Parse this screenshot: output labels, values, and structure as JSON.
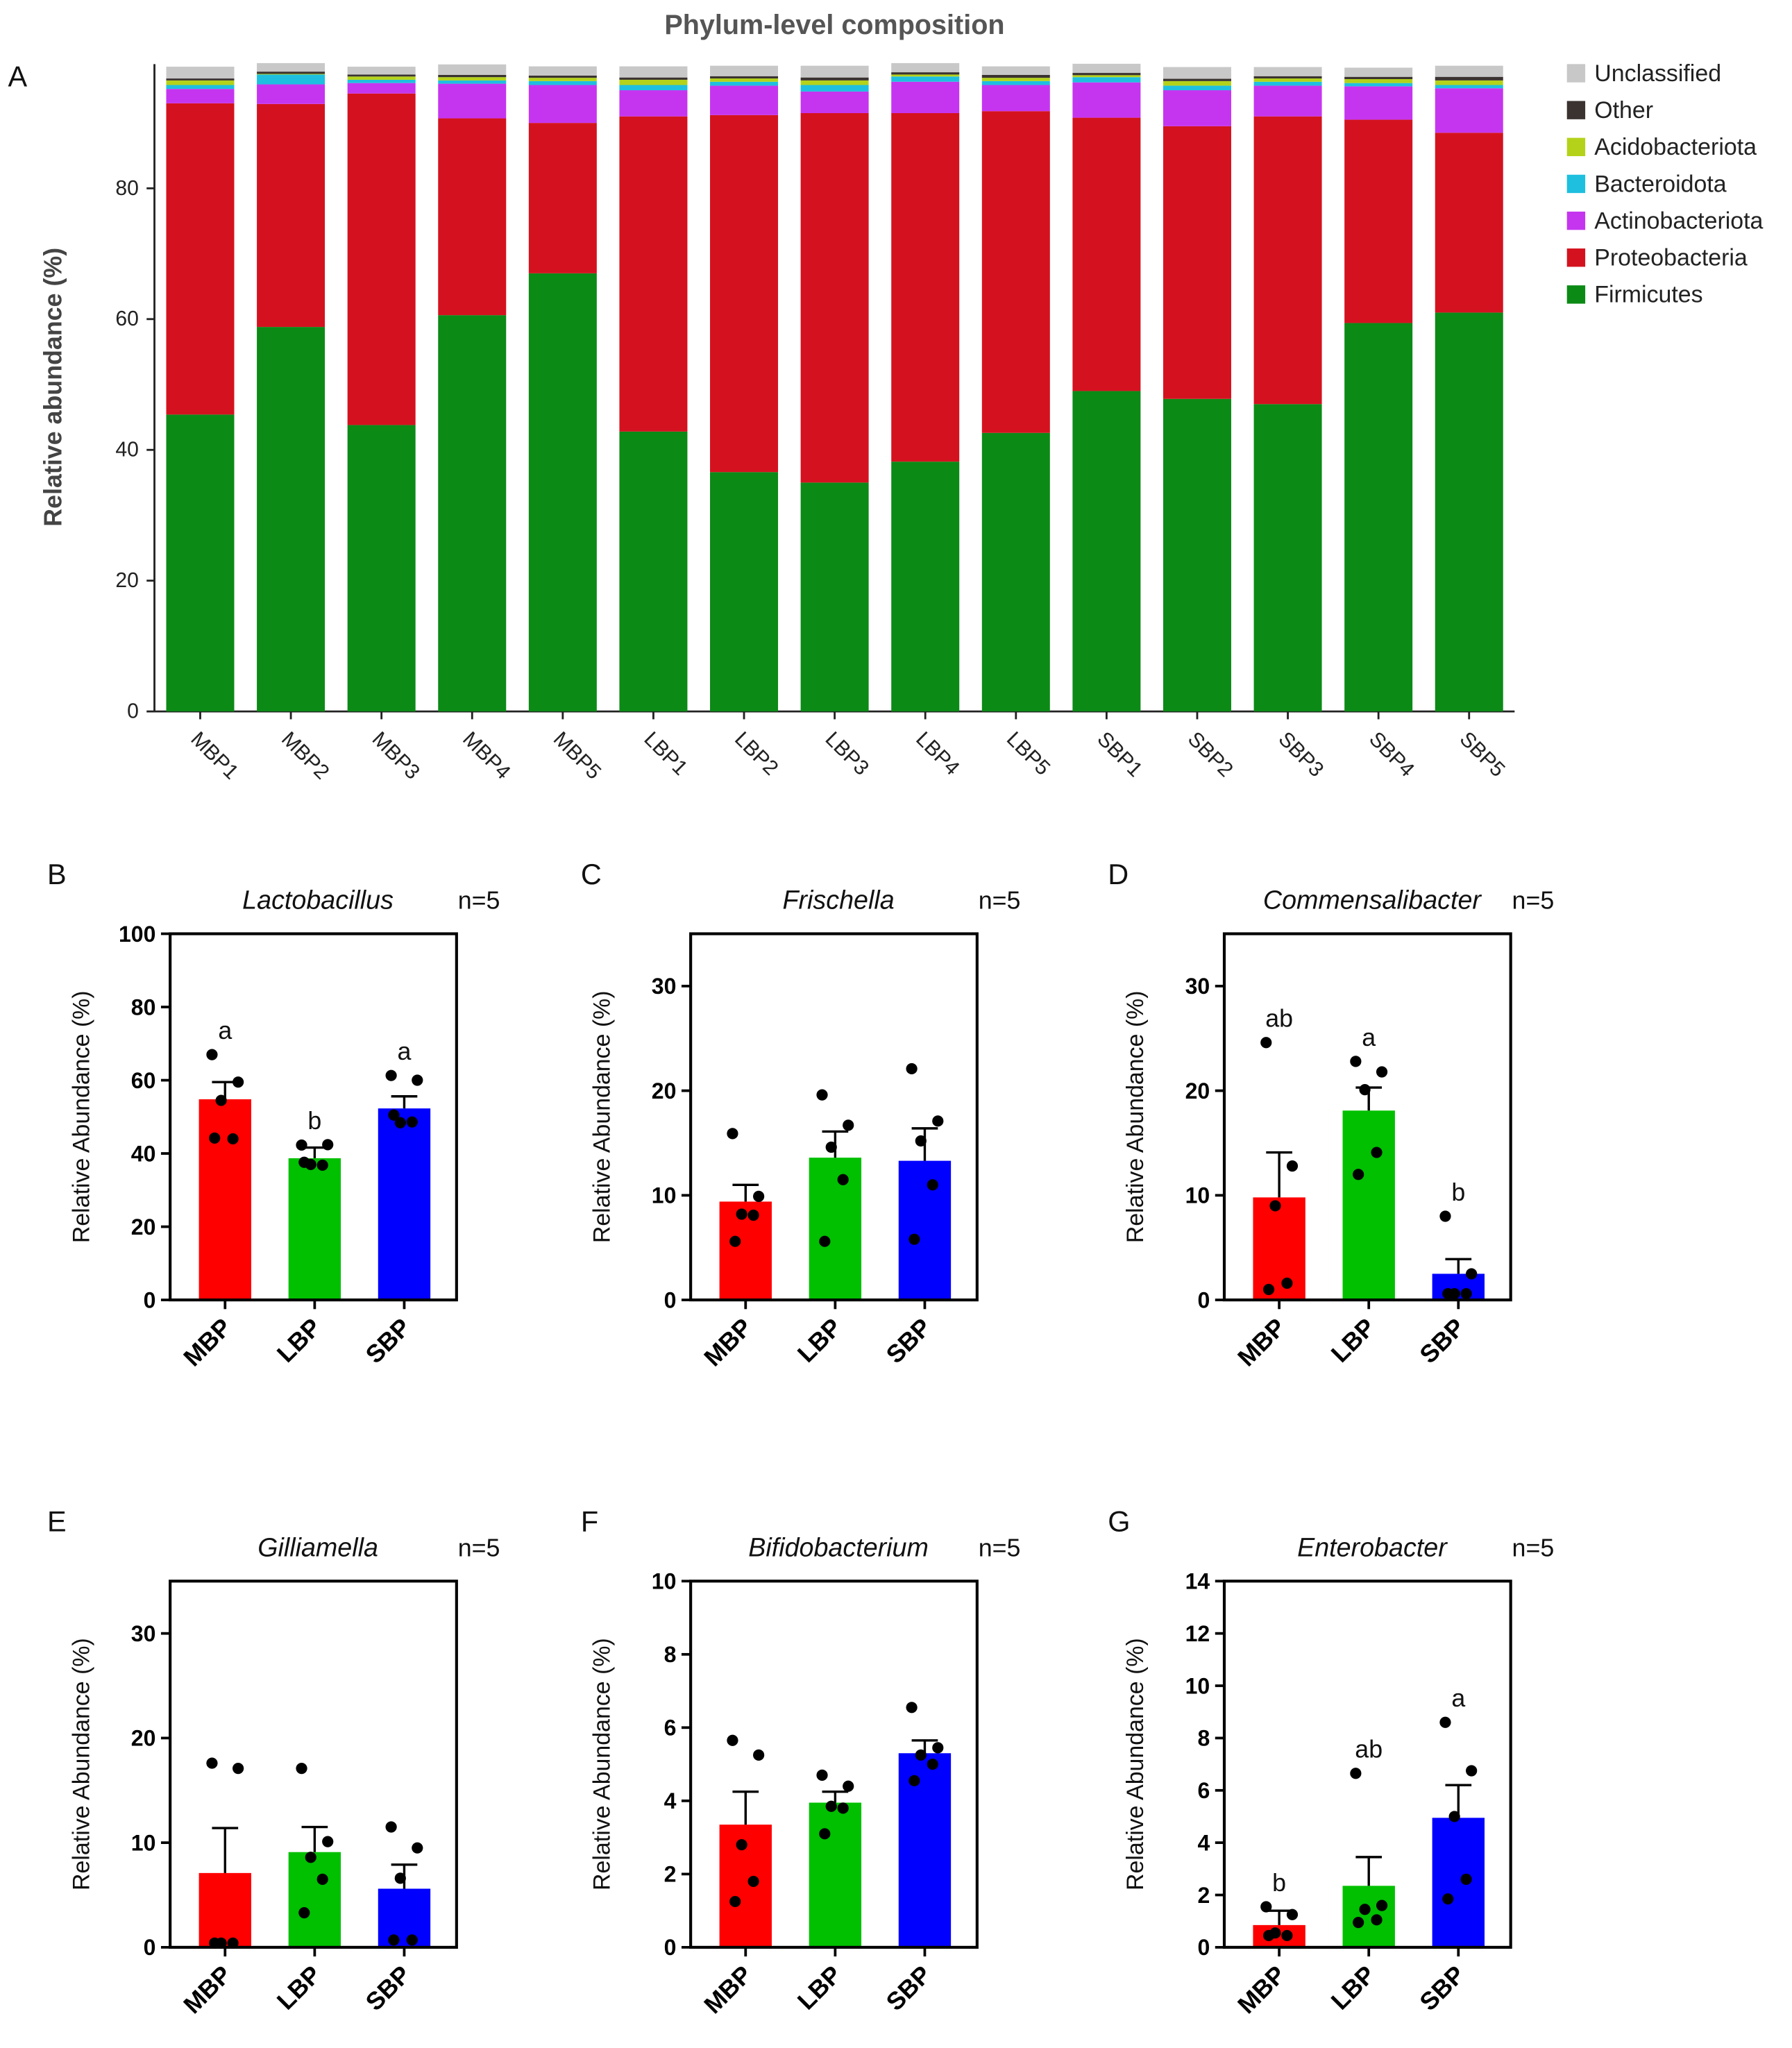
{
  "chart_data": [
    {
      "type": "bar",
      "stacked": true,
      "panel": "A",
      "title": "Phylum-level composition",
      "ylabel": "Relative abundance (%)",
      "ylim": [
        0,
        100
      ],
      "yticks": [
        0,
        20,
        40,
        60,
        80
      ],
      "categories": [
        "MBP1",
        "MBP2",
        "MBP3",
        "MBP4",
        "MBP5",
        "LBP1",
        "LBP2",
        "LBP3",
        "LBP4",
        "LBP5",
        "SBP1",
        "SBP2",
        "SBP3",
        "SBP4",
        "SBP5"
      ],
      "legend_position": "right",
      "series": [
        {
          "name": "Firmicutes",
          "color": "#0b8a16",
          "values": [
            45.4,
            58.8,
            43.8,
            60.6,
            67.0,
            42.8,
            36.6,
            35.0,
            38.2,
            42.6,
            49.0,
            47.8,
            47.0,
            59.4,
            61.0
          ]
        },
        {
          "name": "Proteobacteria",
          "color": "#d4121f",
          "values": [
            47.6,
            34.1,
            50.7,
            30.1,
            23.0,
            48.2,
            54.6,
            56.5,
            53.3,
            49.2,
            41.8,
            41.7,
            44.0,
            31.1,
            27.5
          ]
        },
        {
          "name": "Actinobacteriota",
          "color": "#c535f0",
          "values": [
            2.2,
            3.0,
            1.6,
            5.3,
            5.8,
            4.0,
            4.5,
            3.3,
            4.8,
            4.0,
            5.4,
            5.5,
            4.7,
            5.1,
            6.8
          ]
        },
        {
          "name": "Bacteroidota",
          "color": "#1fbfdf",
          "values": [
            0.6,
            1.5,
            0.5,
            0.5,
            0.6,
            0.8,
            0.6,
            1.0,
            0.8,
            0.6,
            0.8,
            0.7,
            0.6,
            0.5,
            0.5
          ]
        },
        {
          "name": "Acidobacteriota",
          "color": "#b5d21a",
          "values": [
            0.7,
            0.1,
            0.5,
            0.5,
            0.5,
            0.8,
            0.5,
            0.7,
            0.3,
            0.5,
            0.3,
            0.7,
            0.5,
            0.6,
            0.7
          ]
        },
        {
          "name": "Other",
          "color": "#3a3330",
          "values": [
            0.3,
            0.35,
            0.3,
            0.35,
            0.35,
            0.35,
            0.35,
            0.45,
            0.35,
            0.45,
            0.35,
            0.35,
            0.35,
            0.35,
            0.55
          ]
        },
        {
          "name": "Unclassified",
          "color": "#c8c8c8",
          "values": [
            1.8,
            1.3,
            1.2,
            1.6,
            1.4,
            1.7,
            1.6,
            1.8,
            1.4,
            1.3,
            1.4,
            1.8,
            1.4,
            1.4,
            1.7
          ]
        }
      ]
    },
    {
      "type": "bar",
      "panel": "B",
      "title": "Lactobacillus",
      "n": "n=5",
      "ylabel": "Relative Abundance (%)",
      "ylim": [
        0,
        100
      ],
      "yticks": [
        0,
        20,
        40,
        60,
        80,
        100
      ],
      "categories": [
        "MBP",
        "LBP",
        "SBP"
      ],
      "colors": [
        "#ff0000",
        "#00c000",
        "#0000ff"
      ],
      "means": [
        54.8,
        38.7,
        52.3
      ],
      "sem": [
        4.7,
        2.9,
        3.3
      ],
      "points": [
        [
          67,
          59.5,
          54.5,
          44,
          44.2
        ],
        [
          42.3,
          42.4,
          37,
          36.8,
          37.6
        ],
        [
          61.3,
          60,
          48.4,
          48.6,
          50.5
        ]
      ],
      "letters": [
        "a",
        "b",
        "a"
      ]
    },
    {
      "type": "bar",
      "panel": "C",
      "title": "Frischella",
      "n": "n=5",
      "ylabel": "Relative Abundance (%)",
      "ylim": [
        0,
        35
      ],
      "yticks": [
        0,
        10,
        20,
        30
      ],
      "categories": [
        "MBP",
        "LBP",
        "SBP"
      ],
      "colors": [
        "#ff0000",
        "#00c000",
        "#0000ff"
      ],
      "means": [
        9.4,
        13.6,
        13.3
      ],
      "sem": [
        1.6,
        2.5,
        3.1
      ],
      "points": [
        [
          15.9,
          9.9,
          8.2,
          8.1,
          5.6
        ],
        [
          19.6,
          16.7,
          14.6,
          11.5,
          5.6
        ],
        [
          22.1,
          17.1,
          15.2,
          11.0,
          5.8
        ]
      ],
      "letters": [
        "",
        "",
        ""
      ]
    },
    {
      "type": "bar",
      "panel": "D",
      "title": "Commensalibacter",
      "n": "n=5",
      "ylabel": "Relative Abundance (%)",
      "ylim": [
        0,
        35
      ],
      "yticks": [
        0,
        10,
        20,
        30
      ],
      "categories": [
        "MBP",
        "LBP",
        "SBP"
      ],
      "colors": [
        "#ff0000",
        "#00c000",
        "#0000ff"
      ],
      "means": [
        9.8,
        18.1,
        2.5
      ],
      "sem": [
        4.3,
        2.2,
        1.4
      ],
      "points": [
        [
          24.6,
          12.8,
          9.0,
          1.6,
          1.0
        ],
        [
          22.8,
          21.8,
          20.1,
          14.1,
          12.0
        ],
        [
          8.0,
          2.5,
          0.6,
          0.6,
          0.6
        ]
      ],
      "letters": [
        "ab",
        "a",
        "b"
      ]
    },
    {
      "type": "bar",
      "panel": "E",
      "title": "Gilliamella",
      "n": "n=5",
      "ylabel": "Relative Abundance (%)",
      "ylim": [
        0,
        35
      ],
      "yticks": [
        0,
        10,
        20,
        30
      ],
      "categories": [
        "MBP",
        "LBP",
        "SBP"
      ],
      "colors": [
        "#ff0000",
        "#00c000",
        "#0000ff"
      ],
      "means": [
        7.1,
        9.1,
        5.6
      ],
      "sem": [
        4.3,
        2.4,
        2.3
      ],
      "points": [
        [
          17.6,
          17.1,
          0.4,
          0.4,
          0.4
        ],
        [
          17.1,
          10.1,
          8.6,
          6.5,
          3.3
        ],
        [
          11.5,
          9.5,
          6.6,
          0.7,
          0.7
        ]
      ],
      "letters": [
        "",
        "",
        ""
      ]
    },
    {
      "type": "bar",
      "panel": "F",
      "title": "Bifidobacterium",
      "n": "n=5",
      "ylabel": "Relative Abundance (%)",
      "ylim": [
        0,
        10
      ],
      "yticks": [
        0,
        2,
        4,
        6,
        8,
        10
      ],
      "categories": [
        "MBP",
        "LBP",
        "SBP"
      ],
      "colors": [
        "#ff0000",
        "#00c000",
        "#0000ff"
      ],
      "means": [
        3.35,
        3.95,
        5.3
      ],
      "sem": [
        0.9,
        0.3,
        0.35
      ],
      "points": [
        [
          5.65,
          5.25,
          2.8,
          1.8,
          1.25
        ],
        [
          4.7,
          4.4,
          3.85,
          3.8,
          3.1
        ],
        [
          6.55,
          5.45,
          5.25,
          5.0,
          4.55
        ]
      ],
      "letters": [
        "",
        "",
        ""
      ]
    },
    {
      "type": "bar",
      "panel": "G",
      "title": "Enterobacter",
      "n": "n=5",
      "ylabel": "Relative Abundance (%)",
      "ylim": [
        0,
        14
      ],
      "yticks": [
        0,
        2,
        4,
        6,
        8,
        10,
        12,
        14
      ],
      "categories": [
        "MBP",
        "LBP",
        "SBP"
      ],
      "colors": [
        "#ff0000",
        "#00c000",
        "#0000ff"
      ],
      "means": [
        0.85,
        2.35,
        4.95
      ],
      "sem": [
        0.55,
        1.1,
        1.25
      ],
      "points": [
        [
          1.55,
          1.25,
          0.55,
          0.45,
          0.45
        ],
        [
          6.65,
          1.6,
          1.45,
          1.05,
          0.95
        ],
        [
          8.6,
          6.75,
          5.0,
          2.6,
          1.85
        ]
      ],
      "letters": [
        "b",
        "ab",
        "a"
      ]
    }
  ]
}
